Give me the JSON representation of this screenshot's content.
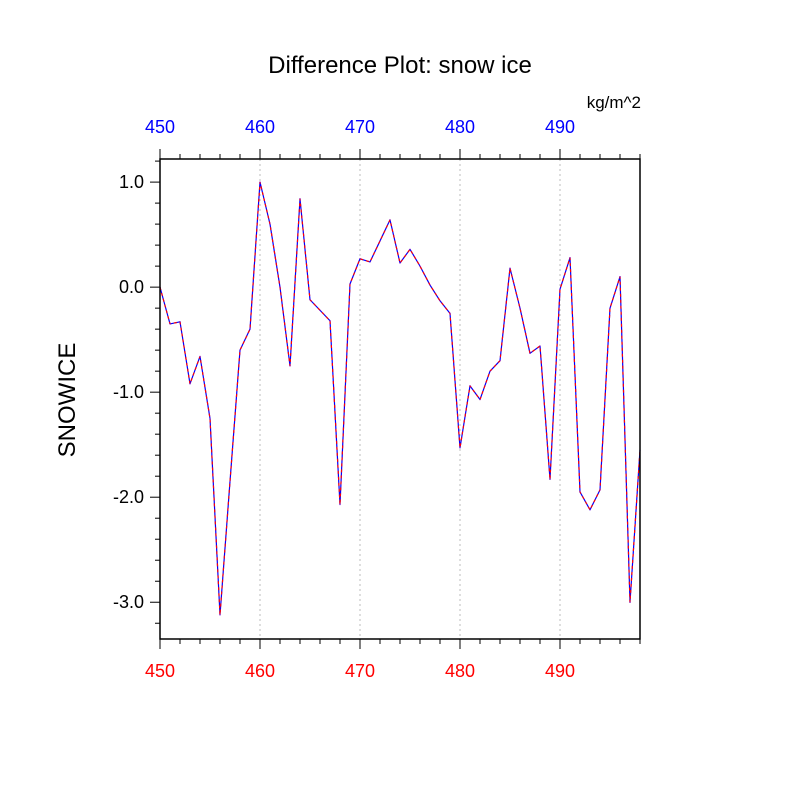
{
  "chart_data": {
    "type": "line",
    "title": "Difference Plot: snow ice",
    "ylabel": "SNOWICE",
    "units": "kg/m^2",
    "x": [
      450,
      451,
      452,
      453,
      454,
      455,
      456,
      457,
      458,
      459,
      460,
      461,
      462,
      463,
      464,
      465,
      466,
      467,
      468,
      469,
      470,
      471,
      472,
      473,
      474,
      475,
      476,
      477,
      478,
      479,
      480,
      481,
      482,
      483,
      484,
      485,
      486,
      487,
      488,
      489,
      490,
      491,
      492,
      493,
      494,
      495,
      496,
      497,
      498
    ],
    "series": [
      {
        "values": [
          0.0,
          -0.35,
          -0.33,
          -0.92,
          -0.66,
          -1.25,
          -3.12,
          -1.85,
          -0.6,
          -0.4,
          1.0,
          0.6,
          0.0,
          -0.75,
          0.84,
          -0.12,
          -0.22,
          -0.32,
          -2.07,
          0.03,
          0.27,
          0.24,
          0.44,
          0.64,
          0.23,
          0.36,
          0.2,
          0.02,
          -0.13,
          -0.25,
          -1.53,
          -0.94,
          -1.07,
          -0.8,
          -0.7,
          0.18,
          -0.2,
          -0.63,
          -0.56,
          -1.83,
          -0.02,
          0.28,
          -1.95,
          -2.12,
          -1.93,
          -0.2,
          0.1,
          -3.0,
          -1.55
        ],
        "color_primary": "#0000ff",
        "color_dash": "#ff0000"
      }
    ],
    "xlim": [
      450,
      498
    ],
    "ylim": [
      -3.35,
      1.22
    ],
    "bottom_ticks": [
      "450",
      "460",
      "470",
      "480",
      "490"
    ],
    "top_ticks": [
      "450",
      "460",
      "470",
      "480",
      "490"
    ],
    "y_ticks": [
      "1.0",
      "0.0",
      "-1.0",
      "-2.0",
      "-3.0"
    ],
    "bottom_tick_color": "#ff0000",
    "top_tick_color": "#0000ff",
    "grid": "vertical dotted at major x ticks"
  }
}
